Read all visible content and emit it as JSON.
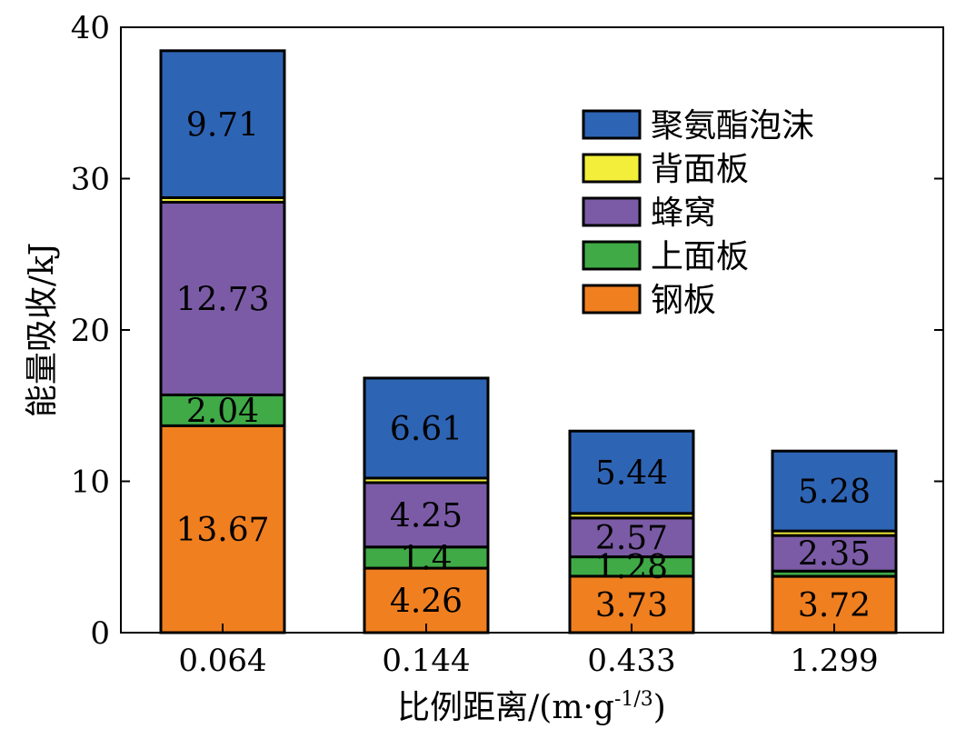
{
  "chart_data": {
    "type": "bar",
    "stacked": true,
    "title": "",
    "xlabel": "比例距离/(m·g-1/3)",
    "xlabel_parts": {
      "main": "比例距离/(m",
      "dot": "·",
      "g": "g",
      "exp": "-1/3",
      "close": ")"
    },
    "ylabel": "能量吸收/kJ",
    "ylim": [
      0,
      40
    ],
    "yticks": [
      0,
      10,
      20,
      30,
      40
    ],
    "grid": false,
    "legend_position": "top-right",
    "categories": [
      "0.064",
      "0.144",
      "0.433",
      "1.299"
    ],
    "series": [
      {
        "name": "钢板",
        "color": "#f07f20",
        "values": [
          13.67,
          4.26,
          3.73,
          3.72
        ],
        "labels": [
          "13.67",
          "4.26",
          "3.73",
          "3.72"
        ]
      },
      {
        "name": "上面板",
        "color": "#3faa46",
        "values": [
          2.04,
          1.4,
          1.28,
          0.35
        ],
        "labels": [
          "2.04",
          "1.4",
          "1.28",
          ""
        ]
      },
      {
        "name": "蜂窝",
        "color": "#7b5ba6",
        "values": [
          12.73,
          4.25,
          2.57,
          2.35
        ],
        "labels": [
          "12.73",
          "4.25",
          "2.57",
          "2.35"
        ]
      },
      {
        "name": "背面板",
        "color": "#f2ee3a",
        "values": [
          0.3,
          0.3,
          0.3,
          0.3
        ],
        "labels": [
          "",
          "",
          "",
          ""
        ]
      },
      {
        "name": "聚氨酯泡沫",
        "color": "#2e64b4",
        "values": [
          9.71,
          6.61,
          5.44,
          5.28
        ],
        "labels": [
          "9.71",
          "6.61",
          "5.44",
          "5.28"
        ]
      }
    ],
    "legend_order": [
      "聚氨酯泡沫",
      "背面板",
      "蜂窝",
      "上面板",
      "钢板"
    ]
  }
}
